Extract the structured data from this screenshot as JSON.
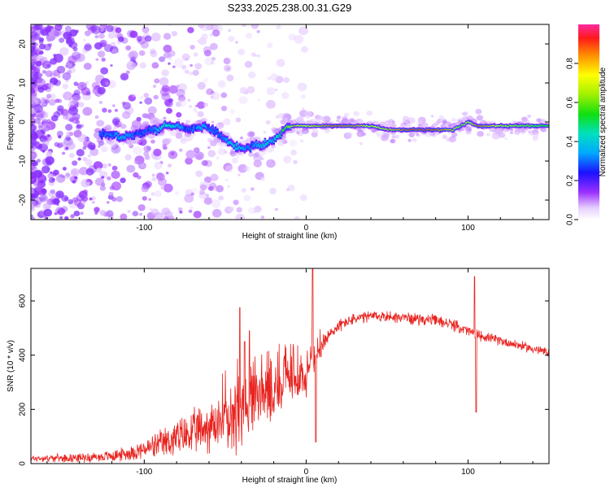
{
  "title": "S233.2025.238.00.31.G29",
  "chart_data": [
    {
      "type": "heatmap",
      "xlabel": "Height of straight line (km)",
      "ylabel": "Frequency (Hz)",
      "xlim": [
        -170,
        150
      ],
      "ylim": [
        -25,
        25
      ],
      "xticks": [
        -100,
        0,
        100
      ],
      "yticks": [
        -20,
        -10,
        0,
        10,
        20
      ],
      "xticklabels": [
        "-100",
        "0",
        "100"
      ],
      "yticklabels": [
        "-20",
        "-10",
        "0",
        "10",
        "20"
      ],
      "colorbar": {
        "label": "Normalized spectral amplitude",
        "range": [
          0,
          1
        ],
        "ticks": [
          0.0,
          0.2,
          0.4,
          0.6,
          0.8
        ],
        "ticklabels": [
          "0.0",
          "0.2",
          "0.4",
          "0.6",
          "0.8"
        ]
      },
      "ridge": {
        "x": [
          -125,
          -115,
          -105,
          -95,
          -88,
          -80,
          -72,
          -65,
          -58,
          -52,
          -46,
          -40,
          -34,
          -28,
          -22,
          -16,
          -12,
          -8,
          -4,
          0,
          10,
          20,
          30,
          40,
          50,
          60,
          70,
          80,
          90,
          95,
          100,
          105,
          110,
          120,
          130,
          140,
          148
        ],
        "freq": [
          -3,
          -4,
          -3,
          -2,
          -1,
          -1,
          -2,
          -1,
          -2,
          -4,
          -6,
          -7,
          -6,
          -6,
          -5,
          -3,
          -1,
          -1,
          -1,
          -1,
          -1,
          -1,
          -1,
          -1,
          -2,
          -2,
          -2,
          -2,
          -2,
          -1,
          0,
          -1,
          -1,
          -1,
          -1,
          -1,
          -1
        ],
        "amplitude": [
          0.3,
          0.35,
          0.3,
          0.3,
          0.45,
          0.35,
          0.3,
          0.35,
          0.3,
          0.3,
          0.4,
          0.35,
          0.3,
          0.4,
          0.35,
          0.5,
          0.65,
          0.85,
          0.7,
          0.75,
          0.85,
          0.9,
          0.85,
          0.7,
          0.8,
          0.9,
          0.95,
          0.9,
          0.8,
          0.6,
          0.7,
          0.9,
          0.85,
          0.7,
          0.65,
          0.6,
          0.55
        ]
      }
    },
    {
      "type": "line",
      "xlabel": "Height of straight line (km)",
      "ylabel": "SNR (10 * v/v)",
      "xlim": [
        -170,
        150
      ],
      "ylim": [
        0,
        720
      ],
      "xticks": [
        -100,
        0,
        100
      ],
      "yticks": [
        0,
        200,
        400,
        600
      ],
      "xticklabels": [
        "-100",
        "0",
        "100"
      ],
      "yticklabels": [
        "0",
        "200",
        "400",
        "600"
      ],
      "color": "#e8231f",
      "envelope": {
        "x": [
          -170,
          -150,
          -130,
          -120,
          -110,
          -100,
          -90,
          -80,
          -70,
          -60,
          -50,
          -45,
          -40,
          -35,
          -30,
          -20,
          -10,
          -5,
          0,
          5,
          10,
          15,
          20,
          25,
          30,
          40,
          50,
          60,
          70,
          80,
          90,
          100,
          105,
          110,
          120,
          130,
          140,
          150
        ],
        "y": [
          20,
          22,
          25,
          30,
          40,
          55,
          75,
          100,
          120,
          145,
          160,
          175,
          180,
          200,
          230,
          270,
          300,
          310,
          330,
          390,
          440,
          480,
          510,
          525,
          535,
          545,
          545,
          540,
          535,
          530,
          515,
          490,
          480,
          470,
          455,
          440,
          425,
          410
        ],
        "noise": [
          10,
          12,
          15,
          18,
          22,
          30,
          45,
          60,
          70,
          80,
          90,
          100,
          110,
          90,
          85,
          80,
          70,
          60,
          60,
          40,
          30,
          25,
          20,
          18,
          18,
          18,
          18,
          18,
          18,
          18,
          18,
          18,
          18,
          15,
          15,
          15,
          15,
          15
        ]
      },
      "spikes": [
        {
          "x": -41,
          "y": 575
        },
        {
          "x": -38,
          "y": 450
        },
        {
          "x": -35,
          "y": 490
        },
        {
          "x": 4,
          "y": 720
        },
        {
          "x": 6,
          "y": 80
        },
        {
          "x": 104,
          "y": 690
        },
        {
          "x": 105,
          "y": 190
        }
      ]
    }
  ]
}
